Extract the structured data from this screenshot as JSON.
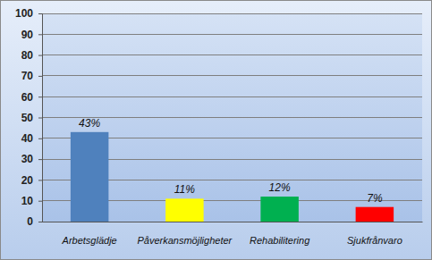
{
  "chart_data": {
    "type": "bar",
    "categories": [
      "Arbetsglädje",
      "Påverkansmöjligheter",
      "Rehabilitering",
      "Sjukfrånvaro"
    ],
    "values": [
      43,
      11,
      12,
      7
    ],
    "value_labels": [
      "43%",
      "11%",
      "12%",
      "7%"
    ],
    "colors": [
      "#4f81bd",
      "#ffff00",
      "#00b050",
      "#ff0000"
    ],
    "ylim": [
      0,
      100
    ],
    "yticks": [
      0,
      10,
      20,
      30,
      40,
      50,
      60,
      70,
      80,
      90,
      100
    ],
    "grid": true,
    "data_labels": true
  }
}
